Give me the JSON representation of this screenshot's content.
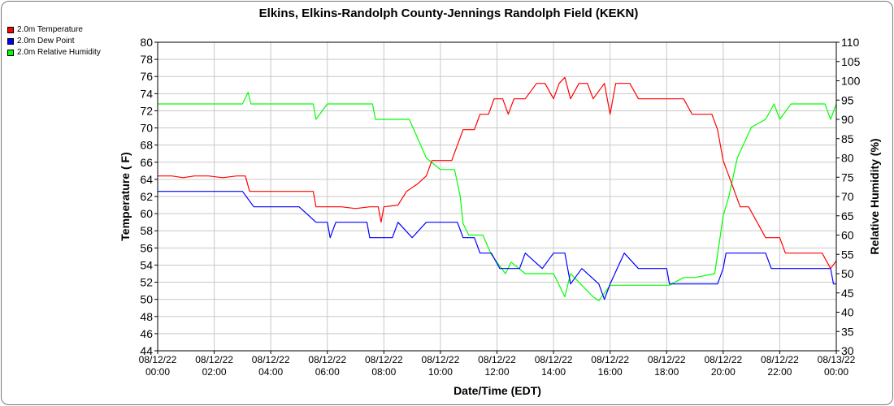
{
  "chart_data": {
    "type": "line",
    "title": "Elkins, Elkins-Randolph County-Jennings Randolph Field (KEKN)",
    "xlabel": "Date/Time (EDT)",
    "ylabel_left": "Temperature ( F)",
    "ylabel_right": "Relative Humidity (%)",
    "ylim_left": [
      44,
      80
    ],
    "yticks_left": [
      44,
      46,
      48,
      50,
      52,
      54,
      56,
      58,
      60,
      62,
      64,
      66,
      68,
      70,
      72,
      74,
      76,
      78,
      80
    ],
    "ylim_right": [
      30,
      110
    ],
    "yticks_right": [
      30,
      35,
      40,
      45,
      50,
      55,
      60,
      65,
      70,
      75,
      80,
      85,
      90,
      95,
      100,
      105,
      110
    ],
    "xlim": [
      0,
      24
    ],
    "xticks": [
      {
        "pos": 0,
        "date": "08/12/22",
        "time": "00:00"
      },
      {
        "pos": 2,
        "date": "08/12/22",
        "time": "02:00"
      },
      {
        "pos": 4,
        "date": "08/12/22",
        "time": "04:00"
      },
      {
        "pos": 6,
        "date": "08/12/22",
        "time": "06:00"
      },
      {
        "pos": 8,
        "date": "08/12/22",
        "time": "08:00"
      },
      {
        "pos": 10,
        "date": "08/12/22",
        "time": "10:00"
      },
      {
        "pos": 12,
        "date": "08/12/22",
        "time": "12:00"
      },
      {
        "pos": 14,
        "date": "08/12/22",
        "time": "14:00"
      },
      {
        "pos": 16,
        "date": "08/12/22",
        "time": "16:00"
      },
      {
        "pos": 18,
        "date": "08/12/22",
        "time": "18:00"
      },
      {
        "pos": 20,
        "date": "08/12/22",
        "time": "20:00"
      },
      {
        "pos": 22,
        "date": "08/12/22",
        "time": "22:00"
      },
      {
        "pos": 24,
        "date": "08/13/22",
        "time": "00:00"
      }
    ],
    "grid": true,
    "legend_position": "top-left",
    "series": [
      {
        "name": "2.0m Temperature",
        "color": "#ff0000",
        "axis": "left",
        "points": [
          [
            0,
            64.4
          ],
          [
            0.5,
            64.4
          ],
          [
            0.9,
            64.2
          ],
          [
            1.3,
            64.4
          ],
          [
            1.8,
            64.4
          ],
          [
            2.3,
            64.2
          ],
          [
            2.8,
            64.4
          ],
          [
            3.1,
            64.4
          ],
          [
            3.25,
            62.6
          ],
          [
            4.5,
            62.6
          ],
          [
            5.0,
            62.6
          ],
          [
            5.5,
            62.6
          ],
          [
            5.6,
            60.8
          ],
          [
            6.5,
            60.8
          ],
          [
            7.0,
            60.6
          ],
          [
            7.5,
            60.8
          ],
          [
            7.8,
            60.8
          ],
          [
            7.9,
            59.0
          ],
          [
            8.0,
            60.8
          ],
          [
            8.5,
            61.0
          ],
          [
            8.8,
            62.6
          ],
          [
            9.2,
            63.5
          ],
          [
            9.5,
            64.4
          ],
          [
            9.7,
            66.2
          ],
          [
            10.0,
            66.2
          ],
          [
            10.4,
            66.2
          ],
          [
            10.6,
            68.0
          ],
          [
            10.8,
            69.8
          ],
          [
            11.2,
            69.8
          ],
          [
            11.4,
            71.6
          ],
          [
            11.7,
            71.6
          ],
          [
            11.9,
            73.4
          ],
          [
            12.2,
            73.4
          ],
          [
            12.4,
            71.6
          ],
          [
            12.6,
            73.4
          ],
          [
            13.0,
            73.4
          ],
          [
            13.4,
            75.2
          ],
          [
            13.7,
            75.2
          ],
          [
            14.0,
            73.4
          ],
          [
            14.2,
            75.2
          ],
          [
            14.4,
            75.9
          ],
          [
            14.6,
            73.4
          ],
          [
            14.9,
            75.2
          ],
          [
            15.2,
            75.2
          ],
          [
            15.4,
            73.4
          ],
          [
            15.8,
            75.2
          ],
          [
            16.0,
            71.6
          ],
          [
            16.2,
            75.2
          ],
          [
            16.7,
            75.2
          ],
          [
            17.0,
            73.4
          ],
          [
            18.2,
            73.4
          ],
          [
            18.6,
            73.4
          ],
          [
            18.9,
            71.6
          ],
          [
            19.6,
            71.6
          ],
          [
            19.8,
            69.8
          ],
          [
            20.0,
            66.2
          ],
          [
            20.2,
            64.4
          ],
          [
            20.4,
            62.6
          ],
          [
            20.6,
            60.8
          ],
          [
            20.9,
            60.8
          ],
          [
            21.2,
            59.0
          ],
          [
            21.5,
            57.2
          ],
          [
            22.0,
            57.2
          ],
          [
            22.2,
            55.4
          ],
          [
            23.0,
            55.4
          ],
          [
            23.5,
            55.4
          ],
          [
            23.8,
            53.6
          ],
          [
            24.0,
            54.5
          ]
        ]
      },
      {
        "name": "2.0m Dew Point",
        "color": "#0000ff",
        "axis": "left",
        "points": [
          [
            0,
            62.6
          ],
          [
            1.0,
            62.6
          ],
          [
            2.0,
            62.6
          ],
          [
            3.0,
            62.6
          ],
          [
            3.4,
            60.8
          ],
          [
            4.0,
            60.8
          ],
          [
            5.0,
            60.8
          ],
          [
            5.6,
            59.0
          ],
          [
            6.0,
            59.0
          ],
          [
            6.1,
            57.2
          ],
          [
            6.3,
            59.0
          ],
          [
            7.4,
            59.0
          ],
          [
            7.5,
            57.2
          ],
          [
            8.0,
            57.2
          ],
          [
            8.3,
            57.2
          ],
          [
            8.5,
            59.0
          ],
          [
            9.0,
            57.2
          ],
          [
            9.5,
            59.0
          ],
          [
            10.0,
            59.0
          ],
          [
            10.6,
            59.0
          ],
          [
            10.8,
            57.2
          ],
          [
            11.2,
            57.2
          ],
          [
            11.4,
            55.4
          ],
          [
            11.8,
            55.4
          ],
          [
            12.1,
            53.6
          ],
          [
            12.8,
            53.6
          ],
          [
            13.0,
            55.4
          ],
          [
            13.6,
            53.6
          ],
          [
            14.0,
            55.4
          ],
          [
            14.4,
            55.4
          ],
          [
            14.6,
            51.8
          ],
          [
            15.0,
            53.6
          ],
          [
            15.6,
            51.8
          ],
          [
            15.8,
            50.0
          ],
          [
            16.0,
            51.8
          ],
          [
            16.5,
            55.4
          ],
          [
            17.0,
            53.6
          ],
          [
            18.0,
            53.6
          ],
          [
            18.1,
            51.8
          ],
          [
            19.0,
            51.8
          ],
          [
            19.8,
            51.8
          ],
          [
            20.0,
            53.6
          ],
          [
            20.1,
            55.4
          ],
          [
            21.0,
            55.4
          ],
          [
            21.5,
            55.4
          ],
          [
            21.7,
            53.6
          ],
          [
            22.5,
            53.6
          ],
          [
            23.0,
            53.6
          ],
          [
            23.8,
            53.6
          ],
          [
            23.9,
            51.8
          ],
          [
            24.0,
            51.8
          ]
        ]
      },
      {
        "name": "2.0m Relative Humidity",
        "color": "#00ff00",
        "axis": "right",
        "points": [
          [
            0,
            94
          ],
          [
            1.0,
            94
          ],
          [
            2.0,
            94
          ],
          [
            3.0,
            94
          ],
          [
            3.2,
            97
          ],
          [
            3.3,
            94
          ],
          [
            4.0,
            94
          ],
          [
            5.0,
            94
          ],
          [
            5.5,
            94
          ],
          [
            5.6,
            90
          ],
          [
            6.0,
            94
          ],
          [
            6.5,
            94
          ],
          [
            7.0,
            94
          ],
          [
            7.6,
            94
          ],
          [
            7.7,
            90
          ],
          [
            8.0,
            90
          ],
          [
            8.5,
            90
          ],
          [
            8.9,
            90
          ],
          [
            9.2,
            85
          ],
          [
            9.5,
            80
          ],
          [
            10.0,
            77
          ],
          [
            10.5,
            77
          ],
          [
            10.7,
            70
          ],
          [
            10.8,
            63
          ],
          [
            11.0,
            60
          ],
          [
            11.5,
            60
          ],
          [
            11.8,
            55
          ],
          [
            12.0,
            53
          ],
          [
            12.3,
            50
          ],
          [
            12.5,
            53
          ],
          [
            13.0,
            50
          ],
          [
            13.5,
            50
          ],
          [
            14.0,
            50
          ],
          [
            14.4,
            44
          ],
          [
            14.6,
            50
          ],
          [
            15.0,
            47
          ],
          [
            15.4,
            44
          ],
          [
            15.6,
            43
          ],
          [
            16.0,
            47
          ],
          [
            16.5,
            47
          ],
          [
            17.0,
            47
          ],
          [
            17.5,
            47
          ],
          [
            18.0,
            47
          ],
          [
            18.1,
            47
          ],
          [
            18.6,
            49
          ],
          [
            19.0,
            49
          ],
          [
            19.7,
            50
          ],
          [
            19.9,
            60
          ],
          [
            20.0,
            65
          ],
          [
            20.2,
            70
          ],
          [
            20.5,
            80
          ],
          [
            21.0,
            88
          ],
          [
            21.5,
            90
          ],
          [
            21.8,
            94
          ],
          [
            22.0,
            90
          ],
          [
            22.4,
            94
          ],
          [
            22.8,
            94
          ],
          [
            23.0,
            94
          ],
          [
            23.6,
            94
          ],
          [
            23.8,
            90
          ],
          [
            24.0,
            94
          ]
        ]
      }
    ]
  }
}
